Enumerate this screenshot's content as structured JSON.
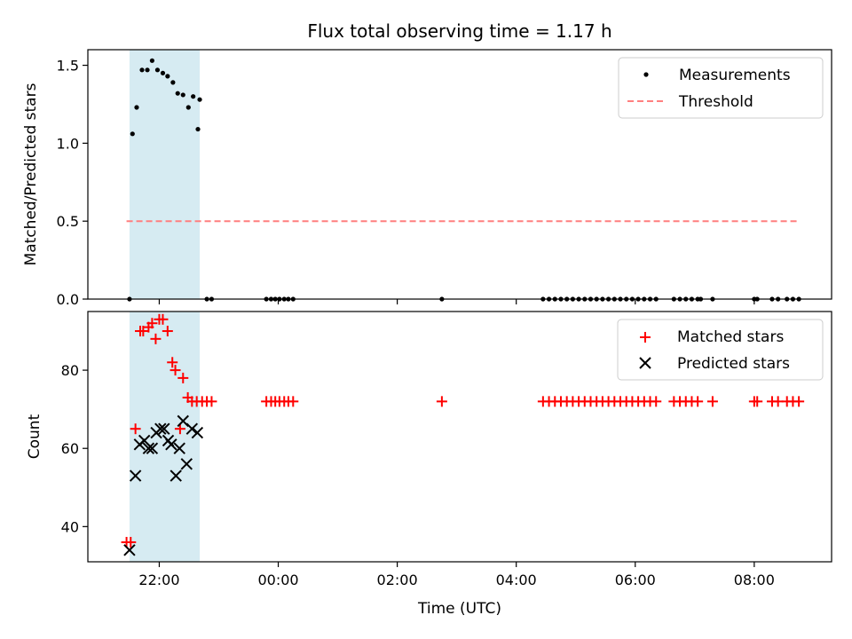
{
  "chart_data": [
    {
      "type": "scatter",
      "title": "Flux total observing time = 1.17 h",
      "xlabel": "",
      "ylabel": "Matched/Predicted stars",
      "x_unit": "hours since 00:00 UTC",
      "xlim": [
        -3.2,
        9.3
      ],
      "ylim": [
        0,
        1.6
      ],
      "yticks": [
        0.0,
        0.5,
        1.0,
        1.5
      ],
      "ytick_labels": [
        "0.0",
        "0.5",
        "1.0",
        "1.5"
      ],
      "x_tick_labels_hidden": true,
      "legend_position": "top-right",
      "shaded_span": {
        "x0": -2.5,
        "x1": -1.32,
        "color": "#add8e6"
      },
      "series": [
        {
          "name": "Measurements",
          "style": "dot",
          "color": "#000000",
          "x": [
            -2.5,
            -2.45,
            -2.38,
            -2.29,
            -2.2,
            -2.12,
            -2.03,
            -1.94,
            -1.86,
            -1.77,
            -1.69,
            -1.6,
            -1.51,
            -1.43,
            -1.35,
            -1.32,
            -1.2,
            -1.12,
            -0.2,
            -0.12,
            -0.05,
            0.02,
            0.1,
            0.17,
            0.25,
            2.75,
            4.45,
            4.55,
            4.65,
            4.75,
            4.85,
            4.95,
            5.05,
            5.15,
            5.25,
            5.35,
            5.45,
            5.55,
            5.65,
            5.75,
            5.85,
            5.95,
            6.05,
            6.15,
            6.25,
            6.35,
            6.65,
            6.75,
            6.85,
            6.95,
            7.05,
            7.1,
            7.3,
            8.0,
            8.05,
            8.3,
            8.4,
            8.55,
            8.65,
            8.75
          ],
          "y": [
            0.0,
            1.06,
            1.23,
            1.47,
            1.47,
            1.53,
            1.47,
            1.45,
            1.43,
            1.39,
            1.32,
            1.31,
            1.23,
            1.3,
            1.09,
            1.28,
            0.0,
            0.0,
            0.0,
            0.0,
            0.0,
            0.0,
            0.0,
            0.0,
            0.0,
            0.0,
            0.0,
            0.0,
            0.0,
            0.0,
            0.0,
            0.0,
            0.0,
            0.0,
            0.0,
            0.0,
            0.0,
            0.0,
            0.0,
            0.0,
            0.0,
            0.0,
            0.0,
            0.0,
            0.0,
            0.0,
            0.0,
            0.0,
            0.0,
            0.0,
            0.0,
            0.0,
            0.0,
            0.0,
            0.0,
            0.0,
            0.0,
            0.0,
            0.0,
            0.0
          ]
        },
        {
          "name": "Threshold",
          "style": "dashed-line",
          "color": "#ff7f7f",
          "x": [
            -2.55,
            8.75
          ],
          "y": [
            0.5,
            0.5
          ]
        }
      ]
    },
    {
      "type": "scatter",
      "title": "",
      "xlabel": "Time (UTC)",
      "ylabel": "Count",
      "x_unit": "hours since 00:00 UTC",
      "xlim": [
        -3.2,
        9.3
      ],
      "ylim": [
        31,
        95
      ],
      "yticks": [
        40,
        60,
        80
      ],
      "ytick_labels": [
        "40",
        "60",
        "80"
      ],
      "xticks": [
        -2,
        0,
        2,
        4,
        6,
        8
      ],
      "xtick_labels": [
        "22:00",
        "00:00",
        "02:00",
        "04:00",
        "06:00",
        "08:00"
      ],
      "legend_position": "top-right",
      "shaded_span": {
        "x0": -2.5,
        "x1": -1.32,
        "color": "#add8e6"
      },
      "series": [
        {
          "name": "Matched stars",
          "style": "plus",
          "color": "#ff0000",
          "x": [
            -2.55,
            -2.48,
            -2.4,
            -2.32,
            -2.27,
            -2.18,
            -2.12,
            -2.06,
            -2.0,
            -1.94,
            -1.86,
            -1.78,
            -1.73,
            -1.65,
            -1.6,
            -1.52,
            -1.45,
            -1.37,
            -1.28,
            -1.2,
            -1.12,
            -0.2,
            -0.12,
            -0.05,
            0.02,
            0.1,
            0.17,
            0.25,
            2.75,
            4.45,
            4.55,
            4.65,
            4.75,
            4.85,
            4.95,
            5.05,
            5.15,
            5.25,
            5.35,
            5.45,
            5.55,
            5.65,
            5.75,
            5.85,
            5.95,
            6.05,
            6.15,
            6.25,
            6.35,
            6.65,
            6.75,
            6.85,
            6.95,
            7.05,
            7.3,
            8.0,
            8.05,
            8.3,
            8.4,
            8.55,
            8.65,
            8.75
          ],
          "y": [
            36,
            36,
            65,
            90,
            90,
            91,
            92,
            88,
            93,
            93,
            90,
            82,
            80,
            65,
            78,
            73,
            72,
            72,
            72,
            72,
            72,
            72,
            72,
            72,
            72,
            72,
            72,
            72,
            72,
            72,
            72,
            72,
            72,
            72,
            72,
            72,
            72,
            72,
            72,
            72,
            72,
            72,
            72,
            72,
            72,
            72,
            72,
            72,
            72,
            72,
            72,
            72,
            72,
            72,
            72,
            72,
            72,
            72,
            72,
            72,
            72,
            72
          ]
        },
        {
          "name": "Predicted stars",
          "style": "x",
          "color": "#000000",
          "x": [
            -2.5,
            -2.4,
            -2.33,
            -2.25,
            -2.18,
            -2.12,
            -2.05,
            -1.98,
            -1.92,
            -1.85,
            -1.8,
            -1.72,
            -1.66,
            -1.6,
            -1.54,
            -1.45,
            -1.36
          ],
          "y": [
            34,
            53,
            61,
            62,
            60,
            60,
            64,
            65,
            65,
            62,
            61,
            53,
            60,
            67,
            56,
            65,
            64
          ]
        }
      ]
    }
  ]
}
